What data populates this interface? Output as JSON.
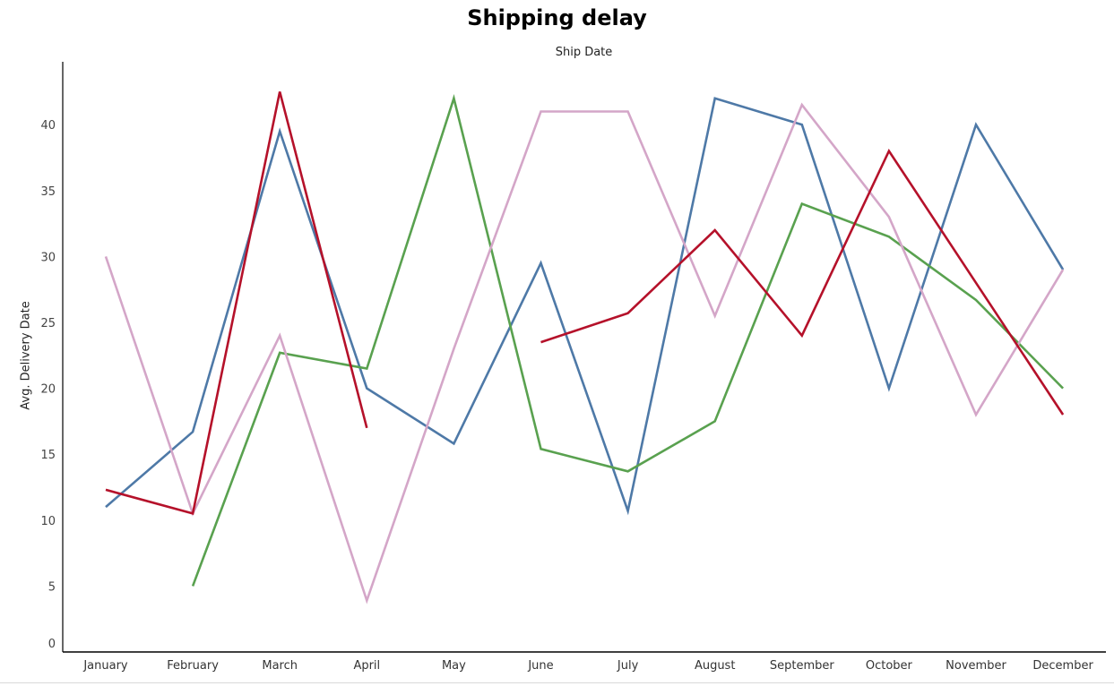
{
  "chart_data": {
    "type": "line",
    "title": "Shipping delay",
    "xlabel": "Ship Date",
    "ylabel": "Avg. Delivery Date",
    "ylim": [
      0,
      45
    ],
    "yticks": [
      0,
      5,
      10,
      15,
      20,
      25,
      30,
      35,
      40
    ],
    "grid": false,
    "categories": [
      "January",
      "February",
      "March",
      "April",
      "May",
      "June",
      "July",
      "August",
      "September",
      "October",
      "November",
      "December"
    ],
    "series": [
      {
        "color": "#4e79a7",
        "values": [
          11,
          16.7,
          39.5,
          20,
          15.8,
          29.5,
          10.7,
          42,
          40,
          20,
          40,
          29
        ]
      },
      {
        "color": "#59a14f",
        "values": [
          null,
          5,
          22.7,
          21.5,
          42,
          15.4,
          13.7,
          17.5,
          34,
          31.5,
          26.7,
          20
        ]
      },
      {
        "color": "#d4a6c8",
        "values": [
          30,
          10.5,
          24,
          3.9,
          23,
          41,
          41,
          25.5,
          41.5,
          33,
          18,
          29
        ]
      },
      {
        "color": "#b5112a",
        "values": [
          12.3,
          10.5,
          42.5,
          17,
          null,
          23.5,
          25.7,
          32,
          24,
          38,
          28,
          18
        ]
      }
    ]
  }
}
